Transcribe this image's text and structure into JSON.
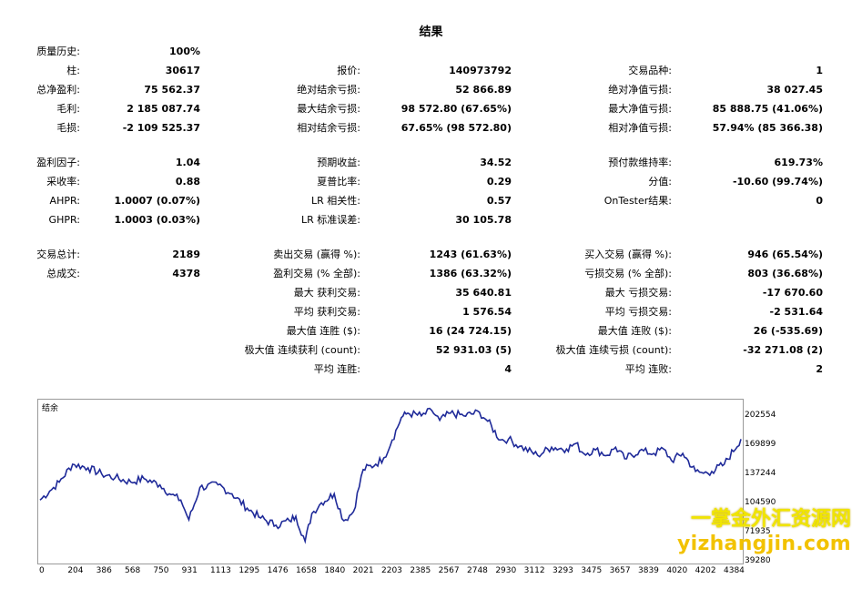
{
  "title": "结果",
  "stats": {
    "col1": [
      {
        "label": "质量历史:",
        "value": "100%"
      },
      {
        "label": "柱:",
        "value": "30617"
      },
      {
        "label": "总净盈利:",
        "value": "75 562.37"
      },
      {
        "label": "毛利:",
        "value": "2 185 087.74"
      },
      {
        "label": "毛损:",
        "value": "-2 109 525.37"
      },
      {
        "label": "盈利因子:",
        "value": "1.04"
      },
      {
        "label": "采收率:",
        "value": "0.88"
      },
      {
        "label": "AHPR:",
        "value": "1.0007 (0.07%)"
      },
      {
        "label": "GHPR:",
        "value": "1.0003 (0.03%)"
      },
      {
        "label": "交易总计:",
        "value": "2189"
      },
      {
        "label": "总成交:",
        "value": "4378"
      }
    ],
    "col2": [
      {
        "label": "报价:",
        "value": "140973792"
      },
      {
        "label": "绝对结余亏损:",
        "value": "52 866.89"
      },
      {
        "label": "最大结余亏损:",
        "value": "98 572.80 (67.65%)"
      },
      {
        "label": "相对结余亏损:",
        "value": "67.65% (98 572.80)"
      },
      {
        "label": "预期收益:",
        "value": "34.52"
      },
      {
        "label": "夏普比率:",
        "value": "0.29"
      },
      {
        "label": "LR 相关性:",
        "value": "0.57"
      },
      {
        "label": "LR 标准误差:",
        "value": "30 105.78"
      },
      {
        "label": "卖出交易 (赢得 %):",
        "value": "1243 (61.63%)"
      },
      {
        "label": "盈利交易 (% 全部):",
        "value": "1386 (63.32%)"
      },
      {
        "label": "最大 获利交易:",
        "value": "35 640.81"
      },
      {
        "label": "平均 获利交易:",
        "value": "1 576.54"
      },
      {
        "label": "最大值 连胜 ($):",
        "value": "16 (24 724.15)"
      },
      {
        "label": "极大值 连续获利 (count):",
        "value": "52 931.03 (5)"
      },
      {
        "label": "平均 连胜:",
        "value": "4"
      }
    ],
    "col3": [
      {
        "label": "交易品种:",
        "value": "1"
      },
      {
        "label": "绝对净值亏损:",
        "value": "38 027.45"
      },
      {
        "label": "最大净值亏损:",
        "value": "85 888.75 (41.06%)"
      },
      {
        "label": "相对净值亏损:",
        "value": "57.94% (85 366.38)"
      },
      {
        "label": "预付款维持率:",
        "value": "619.73%"
      },
      {
        "label": "分值:",
        "value": "-10.60 (99.74%)"
      },
      {
        "label": "OnTester结果:",
        "value": "0"
      },
      {
        "label": "买入交易 (赢得 %):",
        "value": "946 (65.54%)"
      },
      {
        "label": "亏损交易 (% 全部):",
        "value": "803 (36.68%)"
      },
      {
        "label": "最大 亏损交易:",
        "value": "-17 670.60"
      },
      {
        "label": "平均 亏损交易:",
        "value": "-2 531.64"
      },
      {
        "label": "最大值 连败 ($):",
        "value": "26 (-535.69)"
      },
      {
        "label": "极大值 连续亏损 (count):",
        "value": "-32 271.08 (2)"
      },
      {
        "label": "平均 连败:",
        "value": "2"
      }
    ]
  },
  "chart_data": {
    "type": "line",
    "title": "结余",
    "color": "#1f2a99",
    "x_ticks": [
      "0",
      "204",
      "386",
      "568",
      "750",
      "931",
      "1113",
      "1295",
      "1476",
      "1658",
      "1840",
      "2021",
      "2203",
      "2385",
      "2567",
      "2748",
      "2930",
      "3112",
      "3293",
      "3475",
      "3657",
      "3839",
      "4020",
      "4202",
      "4384"
    ],
    "y_ticks": [
      "202554",
      "169899",
      "137244",
      "104590",
      "71935",
      "39280"
    ],
    "xlim": [
      0,
      4384
    ],
    "ylim": [
      39280,
      218000
    ],
    "series": [
      {
        "x": [
          0,
          60,
          120,
          204,
          300,
          386,
          470,
          568,
          650,
          750,
          820,
          880,
          931,
          1000,
          1113,
          1200,
          1295,
          1380,
          1476,
          1560,
          1600,
          1658,
          1700,
          1760,
          1840,
          1900,
          1960,
          2021,
          2100,
          2150,
          2203,
          2260,
          2300,
          2385,
          2450,
          2500,
          2567,
          2650,
          2748,
          2800,
          2880,
          2930,
          3000,
          3112,
          3200,
          3293,
          3350,
          3400,
          3475,
          3550,
          3600,
          3657,
          3750,
          3839,
          3900,
          3950,
          4020,
          4100,
          4150,
          4202,
          4280,
          4384
        ],
        "y": [
          108000,
          118000,
          128000,
          148000,
          144000,
          137000,
          133000,
          128000,
          132000,
          125000,
          114000,
          108000,
          86000,
          122000,
          125000,
          115000,
          99000,
          88000,
          80000,
          85000,
          90000,
          62000,
          93000,
          105000,
          115000,
          85000,
          95000,
          142000,
          148000,
          155000,
          175000,
          200000,
          205000,
          202000,
          208000,
          197000,
          205000,
          202000,
          206000,
          196000,
          175000,
          176000,
          168000,
          158000,
          167000,
          165000,
          171000,
          160000,
          164000,
          158000,
          167000,
          154000,
          163000,
          160000,
          165000,
          152000,
          160000,
          140000,
          138000,
          140000,
          148000,
          176000
        ]
      }
    ]
  }
}
